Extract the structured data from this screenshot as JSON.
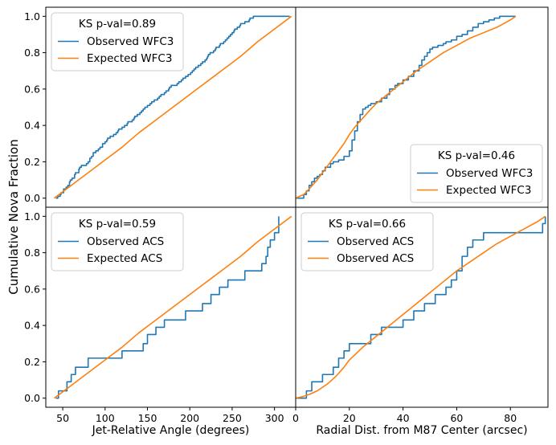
{
  "figure": {
    "ylabel": "Cumulative Nova Fraction",
    "colors": {
      "observed": "#1f77b4",
      "expected": "#ff7f0e"
    }
  },
  "chart_data": [
    {
      "type": "line",
      "position": "top-left",
      "xlim": [
        30,
        325
      ],
      "ylim": [
        -0.05,
        1.05
      ],
      "yticks": [
        0.0,
        0.2,
        0.4,
        0.6,
        0.8,
        1.0
      ],
      "ytick_labels": [
        "0.0",
        "0.2",
        "0.4",
        "0.6",
        "0.8",
        "1.0"
      ],
      "xticks": [],
      "xtick_labels": [],
      "xlabel": "",
      "legend": {
        "placement": "top-left",
        "title": "KS p-val=0.89"
      },
      "series": [
        {
          "name": "Observed WFC3",
          "style": "observed",
          "step": true,
          "x": [
            42,
            44,
            47,
            48,
            51,
            54,
            56,
            58,
            59,
            61,
            64,
            65,
            69,
            70,
            72,
            78,
            80,
            82,
            84,
            86,
            89,
            92,
            94,
            97,
            100,
            102,
            103,
            106,
            110,
            113,
            115,
            116,
            120,
            123,
            126,
            127,
            132,
            134,
            135,
            138,
            141,
            143,
            145,
            147,
            150,
            153,
            155,
            158,
            162,
            164,
            166,
            170,
            172,
            175,
            176,
            178,
            185,
            187,
            190,
            192,
            195,
            198,
            201,
            203,
            205,
            207,
            210,
            213,
            215,
            218,
            220,
            221,
            222,
            224,
            228,
            230,
            231,
            235,
            236,
            240,
            242,
            244,
            246,
            248,
            250,
            252,
            253,
            256,
            259,
            260,
            265,
            270,
            271,
            275,
            279,
            282,
            285,
            286,
            288,
            295,
            300,
            302,
            303,
            305,
            307,
            311,
            312,
            315,
            318
          ],
          "y": [
            0.0,
            0.01,
            0.02,
            0.03,
            0.05,
            0.06,
            0.07,
            0.09,
            0.1,
            0.11,
            0.13,
            0.14,
            0.16,
            0.17,
            0.18,
            0.19,
            0.2,
            0.22,
            0.23,
            0.25,
            0.26,
            0.27,
            0.28,
            0.3,
            0.31,
            0.32,
            0.33,
            0.34,
            0.35,
            0.36,
            0.37,
            0.38,
            0.39,
            0.4,
            0.41,
            0.42,
            0.43,
            0.44,
            0.45,
            0.46,
            0.47,
            0.48,
            0.49,
            0.5,
            0.51,
            0.52,
            0.53,
            0.54,
            0.55,
            0.56,
            0.57,
            0.58,
            0.59,
            0.6,
            0.61,
            0.62,
            0.63,
            0.64,
            0.65,
            0.66,
            0.67,
            0.68,
            0.69,
            0.7,
            0.71,
            0.72,
            0.73,
            0.74,
            0.75,
            0.76,
            0.77,
            0.78,
            0.79,
            0.8,
            0.81,
            0.82,
            0.83,
            0.84,
            0.85,
            0.86,
            0.87,
            0.88,
            0.89,
            0.9,
            0.91,
            0.92,
            0.93,
            0.94,
            0.95,
            0.96,
            0.97,
            0.98,
            0.99,
            1.0,
            1.0,
            1.0,
            1.0,
            1.0,
            1.0,
            1.0,
            1.0,
            1.0,
            1.0,
            1.0,
            1.0,
            1.0,
            1.0,
            1.0,
            1.0
          ]
        },
        {
          "name": "Expected WFC3",
          "style": "expected",
          "step": false,
          "x": [
            40,
            60,
            80,
            100,
            120,
            140,
            160,
            180,
            200,
            220,
            240,
            260,
            280,
            300,
            320
          ],
          "y": [
            0.0,
            0.07,
            0.14,
            0.21,
            0.28,
            0.36,
            0.43,
            0.5,
            0.57,
            0.64,
            0.71,
            0.78,
            0.86,
            0.93,
            1.0
          ]
        }
      ]
    },
    {
      "type": "line",
      "position": "top-right",
      "xlim": [
        0,
        94
      ],
      "ylim": [
        -0.05,
        1.05
      ],
      "yticks": [],
      "ytick_labels": [],
      "xticks": [],
      "xtick_labels": [],
      "xlabel": "",
      "legend": {
        "placement": "bottom-right",
        "title": "KS p-val=0.46"
      },
      "series": [
        {
          "name": "Observed WFC3",
          "style": "observed",
          "step": true,
          "x": [
            0,
            3,
            4,
            5,
            6,
            7,
            8,
            9,
            10,
            11,
            13,
            14,
            16,
            18,
            20,
            21,
            22,
            23,
            24,
            25,
            26,
            27,
            28,
            30,
            32,
            34,
            35,
            37,
            38,
            40,
            42,
            44,
            46,
            47,
            48,
            49,
            50,
            51,
            53,
            55,
            56,
            58,
            60,
            62,
            64,
            66,
            68,
            70,
            72,
            74,
            76,
            78,
            80,
            82
          ],
          "y": [
            0.0,
            0.02,
            0.04,
            0.07,
            0.09,
            0.11,
            0.12,
            0.13,
            0.15,
            0.17,
            0.19,
            0.2,
            0.21,
            0.23,
            0.26,
            0.32,
            0.37,
            0.42,
            0.46,
            0.49,
            0.5,
            0.51,
            0.52,
            0.53,
            0.55,
            0.57,
            0.6,
            0.62,
            0.63,
            0.65,
            0.67,
            0.7,
            0.73,
            0.76,
            0.78,
            0.8,
            0.82,
            0.83,
            0.84,
            0.85,
            0.86,
            0.87,
            0.89,
            0.9,
            0.92,
            0.94,
            0.96,
            0.97,
            0.98,
            0.99,
            1.0,
            1.0,
            1.0,
            1.0
          ]
        },
        {
          "name": "Expected WFC3",
          "style": "expected",
          "step": false,
          "x": [
            0,
            3,
            5,
            8,
            10,
            12,
            15,
            18,
            20,
            22,
            25,
            28,
            30,
            35,
            40,
            45,
            50,
            55,
            60,
            65,
            70,
            75,
            80,
            82
          ],
          "y": [
            0.0,
            0.02,
            0.05,
            0.1,
            0.14,
            0.18,
            0.24,
            0.3,
            0.35,
            0.39,
            0.44,
            0.49,
            0.52,
            0.58,
            0.64,
            0.7,
            0.75,
            0.8,
            0.84,
            0.88,
            0.91,
            0.94,
            0.98,
            1.0
          ]
        }
      ]
    },
    {
      "type": "line",
      "position": "bottom-left",
      "xlim": [
        30,
        325
      ],
      "ylim": [
        -0.05,
        1.05
      ],
      "yticks": [
        0.0,
        0.2,
        0.4,
        0.6,
        0.8,
        1.0
      ],
      "ytick_labels": [
        "0.0",
        "0.2",
        "0.4",
        "0.6",
        "0.8",
        "1.0"
      ],
      "xticks": [
        50,
        100,
        150,
        200,
        250,
        300
      ],
      "xtick_labels": [
        "50",
        "100",
        "150",
        "200",
        "250",
        "300"
      ],
      "xlabel": "Jet-Relative Angle (degrees)",
      "legend": {
        "placement": "top-left",
        "title": "KS p-val=0.59"
      },
      "series": [
        {
          "name": "Observed ACS",
          "style": "observed",
          "step": true,
          "x": [
            42,
            45,
            55,
            60,
            65,
            80,
            90,
            100,
            110,
            120,
            145,
            150,
            160,
            170,
            195,
            200,
            215,
            225,
            235,
            245,
            265,
            285,
            290,
            292,
            295,
            300,
            305
          ],
          "y": [
            0.0,
            0.04,
            0.09,
            0.13,
            0.17,
            0.22,
            0.22,
            0.22,
            0.22,
            0.26,
            0.3,
            0.35,
            0.39,
            0.43,
            0.48,
            0.48,
            0.52,
            0.57,
            0.61,
            0.65,
            0.7,
            0.74,
            0.78,
            0.83,
            0.87,
            0.91,
            1.0
          ]
        },
        {
          "name": "Expected ACS",
          "style": "expected",
          "step": false,
          "x": [
            40,
            60,
            80,
            100,
            120,
            140,
            160,
            180,
            200,
            220,
            240,
            260,
            280,
            300,
            320
          ],
          "y": [
            0.0,
            0.07,
            0.14,
            0.21,
            0.28,
            0.36,
            0.43,
            0.5,
            0.57,
            0.64,
            0.71,
            0.78,
            0.86,
            0.93,
            1.0
          ]
        }
      ]
    },
    {
      "type": "line",
      "position": "bottom-right",
      "xlim": [
        0,
        94
      ],
      "ylim": [
        -0.05,
        1.05
      ],
      "yticks": [],
      "ytick_labels": [],
      "xticks": [
        0,
        20,
        40,
        60,
        80
      ],
      "xtick_labels": [
        "0",
        "20",
        "40",
        "60",
        "80"
      ],
      "xlabel": "Radial Dist. from M87 Center (arcsec)",
      "legend": {
        "placement": "top-left",
        "title": "KS p-val=0.66"
      },
      "series": [
        {
          "name": "Observed ACS",
          "style": "observed",
          "step": true,
          "x": [
            0,
            4,
            6,
            10,
            14,
            16,
            18,
            20,
            22,
            28,
            32,
            36,
            40,
            44,
            48,
            52,
            56,
            58,
            60,
            62,
            64,
            66,
            70,
            80,
            92,
            93
          ],
          "y": [
            0.0,
            0.04,
            0.09,
            0.13,
            0.17,
            0.22,
            0.26,
            0.3,
            0.3,
            0.35,
            0.39,
            0.39,
            0.43,
            0.48,
            0.52,
            0.57,
            0.61,
            0.65,
            0.7,
            0.78,
            0.83,
            0.87,
            0.91,
            0.91,
            0.96,
            1.0
          ]
        },
        {
          "name": "Observed ACS",
          "style": "expected",
          "step": false,
          "x": [
            0,
            3,
            5,
            8,
            10,
            12,
            15,
            18,
            20,
            25,
            30,
            35,
            40,
            45,
            50,
            55,
            60,
            65,
            70,
            75,
            80,
            85,
            90,
            93
          ],
          "y": [
            0.0,
            0.01,
            0.02,
            0.04,
            0.06,
            0.08,
            0.12,
            0.17,
            0.21,
            0.28,
            0.34,
            0.4,
            0.46,
            0.52,
            0.58,
            0.64,
            0.7,
            0.75,
            0.8,
            0.85,
            0.89,
            0.93,
            0.97,
            1.0
          ]
        }
      ]
    }
  ]
}
